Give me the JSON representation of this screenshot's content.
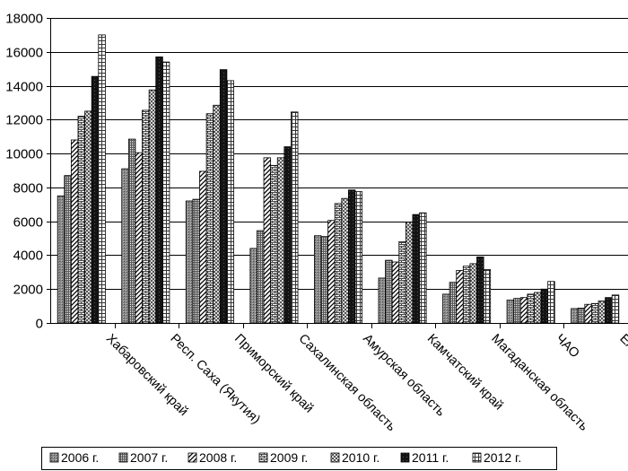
{
  "chart_data": {
    "type": "bar",
    "title": "",
    "xlabel": "",
    "ylabel": "",
    "ylim": [
      0,
      18000
    ],
    "yticks": [
      0,
      2000,
      4000,
      6000,
      8000,
      10000,
      12000,
      14000,
      16000,
      18000
    ],
    "grid": "horizontal",
    "legend_position": "bottom",
    "categories": [
      "Хабаровский край",
      "Респ. Саха (Якутия)",
      "Приморский край",
      "Сахалинская область",
      "Амурская область",
      "Камчатский край",
      "Магаданская область",
      "ЧАО",
      "ЕАО"
    ],
    "series": [
      {
        "name": "2006 г.",
        "values": [
          7500,
          9100,
          7200,
          4400,
          5150,
          2650,
          1700,
          1350,
          850
        ]
      },
      {
        "name": "2007 г.",
        "values": [
          8700,
          10850,
          7300,
          5450,
          5100,
          3700,
          2400,
          1450,
          880
        ]
      },
      {
        "name": "2008 г.",
        "values": [
          10800,
          10050,
          8950,
          9750,
          6050,
          3600,
          3100,
          1500,
          1100
        ]
      },
      {
        "name": "2009 г.",
        "values": [
          12200,
          12550,
          12350,
          9300,
          7050,
          4800,
          3350,
          1700,
          1150
        ]
      },
      {
        "name": "2010 г.",
        "values": [
          12500,
          13750,
          12850,
          9750,
          7350,
          5950,
          3500,
          1800,
          1300
        ]
      },
      {
        "name": "2011 г.",
        "values": [
          14550,
          15700,
          14950,
          10400,
          7850,
          6400,
          3900,
          2000,
          1500
        ]
      },
      {
        "name": "2012 г.",
        "values": [
          17000,
          15400,
          14300,
          12450,
          7750,
          6500,
          3150,
          2450,
          1650
        ]
      }
    ]
  }
}
